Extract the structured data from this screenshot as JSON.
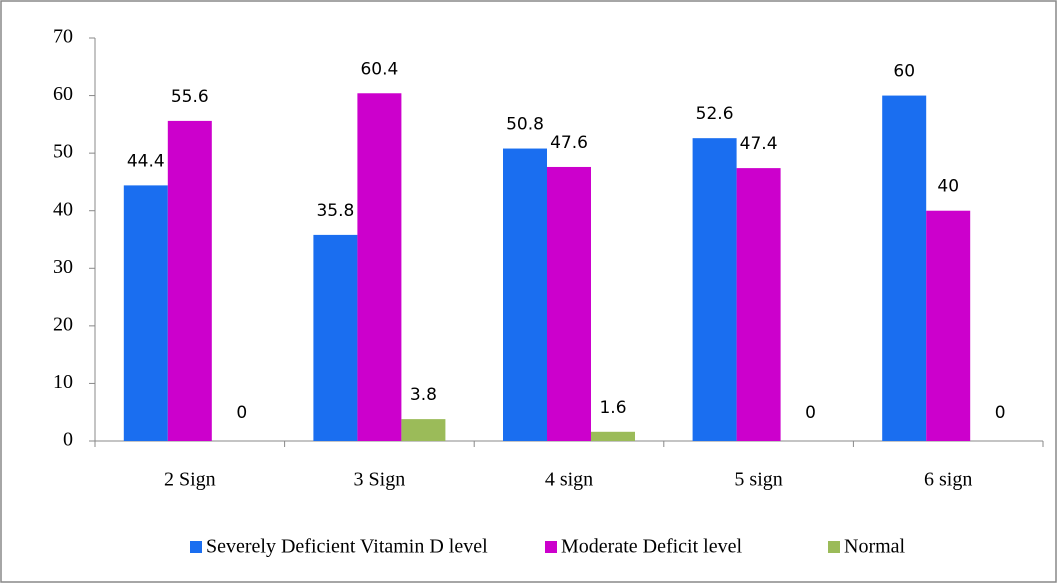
{
  "chart_data": {
    "type": "bar",
    "categories": [
      "2 Sign",
      "3 Sign",
      "4 sign",
      "5 sign",
      "6 sign"
    ],
    "series": [
      {
        "name": "Severely Deficient Vitamin D level",
        "color": "#1a6ef0",
        "values": [
          44.4,
          35.8,
          50.8,
          52.6,
          60
        ]
      },
      {
        "name": "Moderate Deficit level",
        "color": "#cc00cc",
        "values": [
          55.6,
          60.4,
          47.6,
          47.4,
          40
        ]
      },
      {
        "name": "Normal",
        "color": "#9bbb59",
        "values": [
          0,
          3.8,
          1.6,
          0,
          0
        ]
      }
    ],
    "ylim": [
      0,
      70
    ],
    "yticks": [
      0,
      10,
      20,
      30,
      40,
      50,
      60,
      70
    ],
    "legend": "bottom"
  }
}
